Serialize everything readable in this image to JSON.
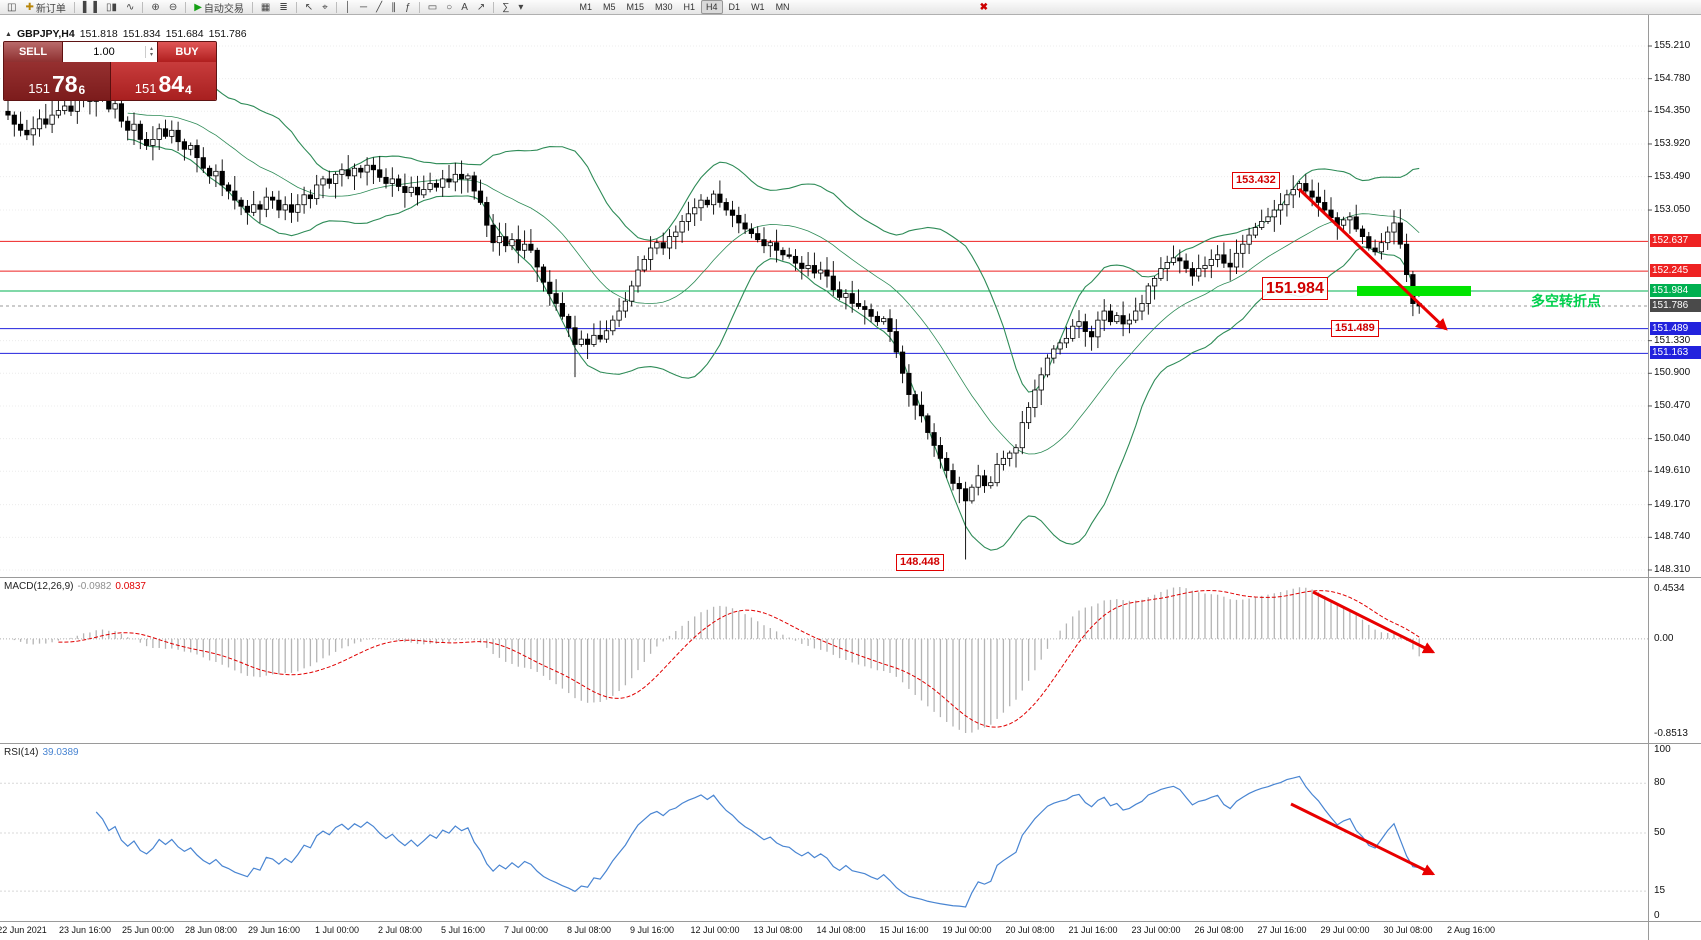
{
  "toolbar": {
    "items": [
      {
        "n": "chart-window-icon",
        "g": "◫"
      },
      {
        "n": "new-order-button",
        "g": "✚",
        "c": "#b8860b",
        "l": "新订单"
      },
      {
        "sep": true
      },
      {
        "n": "bar-chart-icon",
        "g": "▌▐"
      },
      {
        "n": "candlestick-chart-icon",
        "g": "▯▮"
      },
      {
        "n": "line-chart-icon",
        "g": "∿"
      },
      {
        "sep": true
      },
      {
        "n": "zoom-in-icon",
        "g": "⊕"
      },
      {
        "n": "zoom-out-icon",
        "g": "⊖"
      },
      {
        "sep": true
      },
      {
        "n": "autotrading-button",
        "g": "▶",
        "c": "#15a015",
        "l": "自动交易"
      },
      {
        "sep": true
      },
      {
        "n": "grid-icon",
        "g": "▦"
      },
      {
        "n": "data-window-icon",
        "g": "≣"
      },
      {
        "sep": true
      },
      {
        "n": "cursor-icon",
        "g": "↖"
      },
      {
        "n": "crosshair-icon",
        "g": "⌖"
      },
      {
        "sep": true
      },
      {
        "n": "vertical-line-icon",
        "g": "│"
      },
      {
        "n": "horizontal-line-icon",
        "g": "─"
      },
      {
        "n": "trendline-icon",
        "g": "╱"
      },
      {
        "n": "channel-icon",
        "g": "∥"
      },
      {
        "n": "fibonacci-icon",
        "g": "ƒ"
      },
      {
        "sep": true
      },
      {
        "n": "rectangle-icon",
        "g": "▭"
      },
      {
        "n": "ellipse-icon",
        "g": "○"
      },
      {
        "n": "text-icon",
        "g": "A"
      },
      {
        "n": "arrow-tool-icon",
        "g": "↗"
      },
      {
        "sep": true
      },
      {
        "n": "indicators-icon",
        "g": "∑"
      },
      {
        "n": "indicators-dropdown-icon",
        "g": "▾"
      }
    ],
    "timeframes": {
      "list": [
        "M1",
        "M5",
        "M15",
        "M30",
        "H1",
        "H4",
        "D1",
        "W1",
        "MN"
      ],
      "active": "H4"
    },
    "close_glyph": "✖"
  },
  "symbol_header": {
    "marker": "▲",
    "symbol": "GBPJPY,H4",
    "open": "151.818",
    "high": "151.834",
    "low": "151.684",
    "close": "151.786"
  },
  "trade_panel": {
    "sell_label": "SELL",
    "buy_label": "BUY",
    "volume": "1.00",
    "spin_up": "▴",
    "spin_down": "▾",
    "sell_price": {
      "base": "151",
      "pips": "78",
      "pip": "6"
    },
    "buy_price": {
      "base": "151",
      "pips": "84",
      "pip": "4"
    }
  },
  "chart_data": {
    "type": "candlestick",
    "symbol": "GBPJPY",
    "timeframe": "H4",
    "first_open": 154.35,
    "closes": [
      154.3,
      154.18,
      154.1,
      154.04,
      154.12,
      154.25,
      154.18,
      154.3,
      154.36,
      154.42,
      154.35,
      154.5,
      154.58,
      154.48,
      154.64,
      154.55,
      154.38,
      154.45,
      154.22,
      154.1,
      154.18,
      153.98,
      153.9,
      153.98,
      154.12,
      154.02,
      154.1,
      153.95,
      153.85,
      153.9,
      153.74,
      153.6,
      153.5,
      153.56,
      153.38,
      153.3,
      153.18,
      153.1,
      153.02,
      153.12,
      153.06,
      153.22,
      153.18,
      153.05,
      153.12,
      153.02,
      153.12,
      153.25,
      153.2,
      153.38,
      153.46,
      153.4,
      153.52,
      153.58,
      153.5,
      153.6,
      153.55,
      153.64,
      153.58,
      153.48,
      153.4,
      153.46,
      153.36,
      153.28,
      153.35,
      153.25,
      153.32,
      153.4,
      153.35,
      153.46,
      153.42,
      153.52,
      153.46,
      153.5,
      153.3,
      153.15,
      152.85,
      152.62,
      152.7,
      152.58,
      152.66,
      152.52,
      152.6,
      152.52,
      152.3,
      152.1,
      151.95,
      151.82,
      151.65,
      151.5,
      151.28,
      151.35,
      151.28,
      151.4,
      151.35,
      151.46,
      151.6,
      151.72,
      151.85,
      152.05,
      152.26,
      152.4,
      152.55,
      152.62,
      152.55,
      152.7,
      152.76,
      152.9,
      153.0,
      153.08,
      153.18,
      153.12,
      153.26,
      153.15,
      153.05,
      152.98,
      152.88,
      152.8,
      152.74,
      152.66,
      152.58,
      152.62,
      152.52,
      152.46,
      152.44,
      152.35,
      152.28,
      152.32,
      152.22,
      152.26,
      152.18,
      152.0,
      151.9,
      151.95,
      151.82,
      151.78,
      151.74,
      151.65,
      151.58,
      151.62,
      151.45,
      151.18,
      150.9,
      150.62,
      150.48,
      150.34,
      150.12,
      149.95,
      149.78,
      149.62,
      149.45,
      149.38,
      149.22,
      149.4,
      149.55,
      149.42,
      149.46,
      149.7,
      149.78,
      149.85,
      149.92,
      150.25,
      150.45,
      150.68,
      150.88,
      151.1,
      151.22,
      151.3,
      151.36,
      151.52,
      151.58,
      151.45,
      151.38,
      151.6,
      151.72,
      151.58,
      151.66,
      151.55,
      151.6,
      151.72,
      151.82,
      152.05,
      152.15,
      152.28,
      152.36,
      152.42,
      152.38,
      152.28,
      152.18,
      152.28,
      152.32,
      152.4,
      152.46,
      152.35,
      152.3,
      152.48,
      152.6,
      152.72,
      152.82,
      152.9,
      152.96,
      153.05,
      153.12,
      153.25,
      153.32,
      153.4,
      153.3,
      153.22,
      153.15,
      153.05,
      152.95,
      152.85,
      152.92,
      152.96,
      152.8,
      152.7,
      152.55,
      152.5,
      152.62,
      152.76,
      152.88,
      152.6,
      152.2,
      151.818,
      151.786
    ],
    "wick_overrides": {
      "14": {
        "high": 154.78
      },
      "90": {
        "low": 150.85
      },
      "152": {
        "low": 148.448
      },
      "205": {
        "high": 153.432
      },
      "224": {
        "high": 151.834,
        "low": 151.684
      }
    },
    "price_ticks": [
      "155.210",
      "154.780",
      "154.350",
      "153.920",
      "153.490",
      "153.050",
      "151.330",
      "150.900",
      "150.470",
      "150.040",
      "149.610",
      "149.170",
      "148.740",
      "148.310"
    ],
    "hlines": [
      {
        "price": 152.637,
        "color": "#ee2222",
        "label": "152.637"
      },
      {
        "price": 152.245,
        "color": "#ee2222",
        "label": "152.245"
      },
      {
        "price": 151.984,
        "color": "#00b050",
        "label": "151.984"
      },
      {
        "price": 151.489,
        "color": "#2222dd",
        "label": "151.489"
      },
      {
        "price": 151.163,
        "color": "#2222dd",
        "label": "151.163"
      }
    ],
    "current_price": {
      "price": 151.786,
      "label": "151.786",
      "color": "#4a4a4a"
    },
    "highlight_bar": {
      "price": 151.984,
      "color": "#00e400"
    },
    "indicators": {
      "bollinger": {
        "period": 20,
        "deviation": 2,
        "color": "#2e8b57"
      },
      "macd": {
        "label": "MACD(12,26,9)",
        "value1": "-0.0982",
        "value2": "0.0837",
        "axis_labels": [
          "0.4534",
          "0.00",
          "-0.8513"
        ]
      },
      "rsi": {
        "label": "RSI(14)",
        "value": "39.0389",
        "axis_labels": [
          "100",
          "80",
          "50",
          "15",
          "0"
        ],
        "levels": [
          80,
          50,
          15
        ]
      }
    },
    "annotations": {
      "peak": "153.432",
      "pivot": "151.984",
      "support": "151.489",
      "bottom": "148.448",
      "note": "多空转折点"
    },
    "time_labels": [
      "22 Jun 2021",
      "23 Jun 16:00",
      "25 Jun 00:00",
      "28 Jun 08:00",
      "29 Jun 16:00",
      "1 Jul 00:00",
      "2 Jul 08:00",
      "5 Jul 16:00",
      "7 Jul 00:00",
      "8 Jul 08:00",
      "9 Jul 16:00",
      "12 Jul 00:00",
      "13 Jul 08:00",
      "14 Jul 08:00",
      "15 Jul 16:00",
      "19 Jul 00:00",
      "20 Jul 08:00",
      "21 Jul 16:00",
      "23 Jul 00:00",
      "26 Jul 08:00",
      "27 Jul 16:00",
      "29 Jul 00:00",
      "30 Jul 08:00",
      "2 Aug 16:00"
    ]
  }
}
